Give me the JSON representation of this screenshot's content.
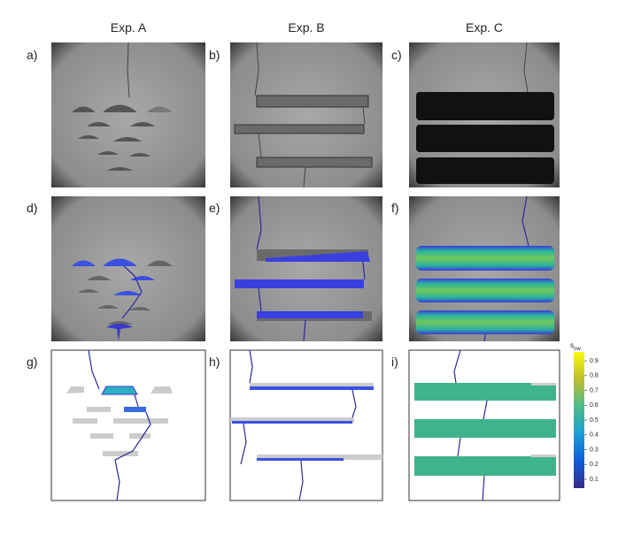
{
  "columns": [
    "Exp. A",
    "Exp. B",
    "Exp. C"
  ],
  "panels": [
    "a)",
    "b)",
    "c)",
    "d)",
    "e)",
    "f)",
    "g)",
    "h)",
    "i)"
  ],
  "colorbar": {
    "label": "s",
    "label_sub": "nw",
    "lim": [
      0.04,
      0.96
    ],
    "ticks": [
      0.1,
      0.2,
      0.3,
      0.4,
      0.5,
      0.6,
      0.7,
      0.8,
      0.9
    ]
  }
}
